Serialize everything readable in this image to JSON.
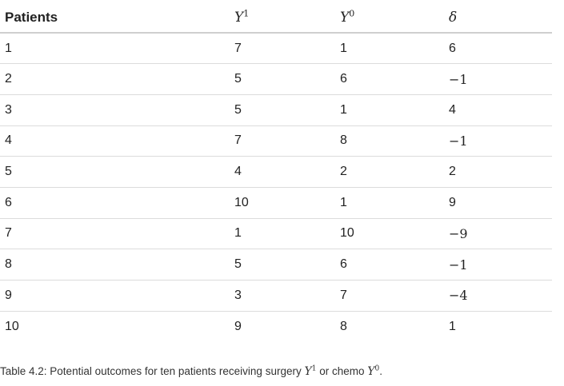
{
  "table": {
    "headers": {
      "patients": "Patients",
      "y1_base": "Y",
      "y1_sup": "1",
      "y0_base": "Y",
      "y0_sup": "0",
      "delta": "δ"
    },
    "rows": [
      {
        "patient": "1",
        "y1": "7",
        "y0": "1",
        "delta": "6"
      },
      {
        "patient": "2",
        "y1": "5",
        "y0": "6",
        "delta": "−1"
      },
      {
        "patient": "3",
        "y1": "5",
        "y0": "1",
        "delta": "4"
      },
      {
        "patient": "4",
        "y1": "7",
        "y0": "8",
        "delta": "−1"
      },
      {
        "patient": "5",
        "y1": "4",
        "y0": "2",
        "delta": "2"
      },
      {
        "patient": "6",
        "y1": "10",
        "y0": "1",
        "delta": "9"
      },
      {
        "patient": "7",
        "y1": "1",
        "y0": "10",
        "delta": "−9"
      },
      {
        "patient": "8",
        "y1": "5",
        "y0": "6",
        "delta": "−1"
      },
      {
        "patient": "9",
        "y1": "3",
        "y0": "7",
        "delta": "−4"
      },
      {
        "patient": "10",
        "y1": "9",
        "y0": "8",
        "delta": "1"
      }
    ]
  },
  "caption": {
    "prefix": "Table 4.2: Potential outcomes for ten patients receiving surgery ",
    "sym1_base": "Y",
    "sym1_sup": "1",
    "middle": " or chemo ",
    "sym2_base": "Y",
    "sym2_sup": "0",
    "suffix": "."
  }
}
